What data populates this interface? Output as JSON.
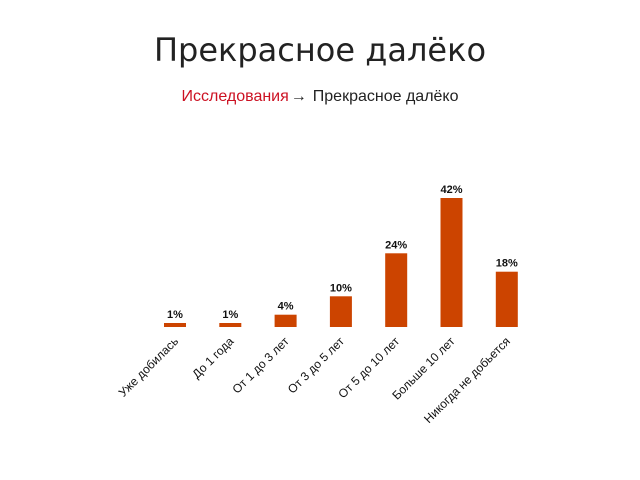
{
  "page": {
    "title": "Прекрасное далёко"
  },
  "breadcrumb": {
    "link_label": "Исследования",
    "arrow": "→",
    "current": "Прекрасное далёко"
  },
  "colors": {
    "bar": "#cc4400",
    "link": "#cc1122"
  },
  "chart_data": {
    "type": "bar",
    "categories": [
      "Уже добилась",
      "До 1 года",
      "От 1 до 3 лет",
      "От 3 до 5 лет",
      "От 5 до 10 лет",
      "Больше 10 лет",
      "Никогда не добьется"
    ],
    "values": [
      1,
      1,
      4,
      10,
      24,
      42,
      18
    ],
    "data_labels": [
      "1%",
      "1%",
      "4%",
      "10%",
      "24%",
      "42%",
      "18%"
    ],
    "unit": "%",
    "ylim": [
      0,
      42
    ],
    "grid": false,
    "legend": "none"
  }
}
